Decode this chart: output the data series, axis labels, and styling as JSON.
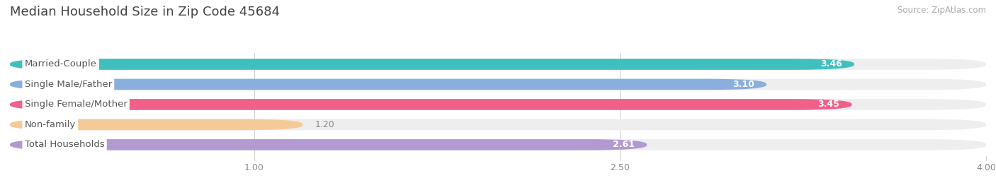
{
  "title": "Median Household Size in Zip Code 45684",
  "source": "Source: ZipAtlas.com",
  "categories": [
    "Married-Couple",
    "Single Male/Father",
    "Single Female/Mother",
    "Non-family",
    "Total Households"
  ],
  "values": [
    3.46,
    3.1,
    3.45,
    1.2,
    2.61
  ],
  "bar_colors": [
    "#40bfbf",
    "#8aaede",
    "#f0608a",
    "#f5ca98",
    "#b09ad0"
  ],
  "bar_bg_color": "#eeeeee",
  "xlim_start": 0,
  "xlim_end": 4.0,
  "xticks": [
    1.0,
    2.5,
    4.0
  ],
  "label_fontsize": 9.5,
  "value_fontsize": 9,
  "title_fontsize": 13,
  "source_fontsize": 8.5,
  "bar_height": 0.55,
  "label_bg_color": "white",
  "label_text_color": "#555555",
  "value_color_inside": "white",
  "value_color_outside": "#888888"
}
